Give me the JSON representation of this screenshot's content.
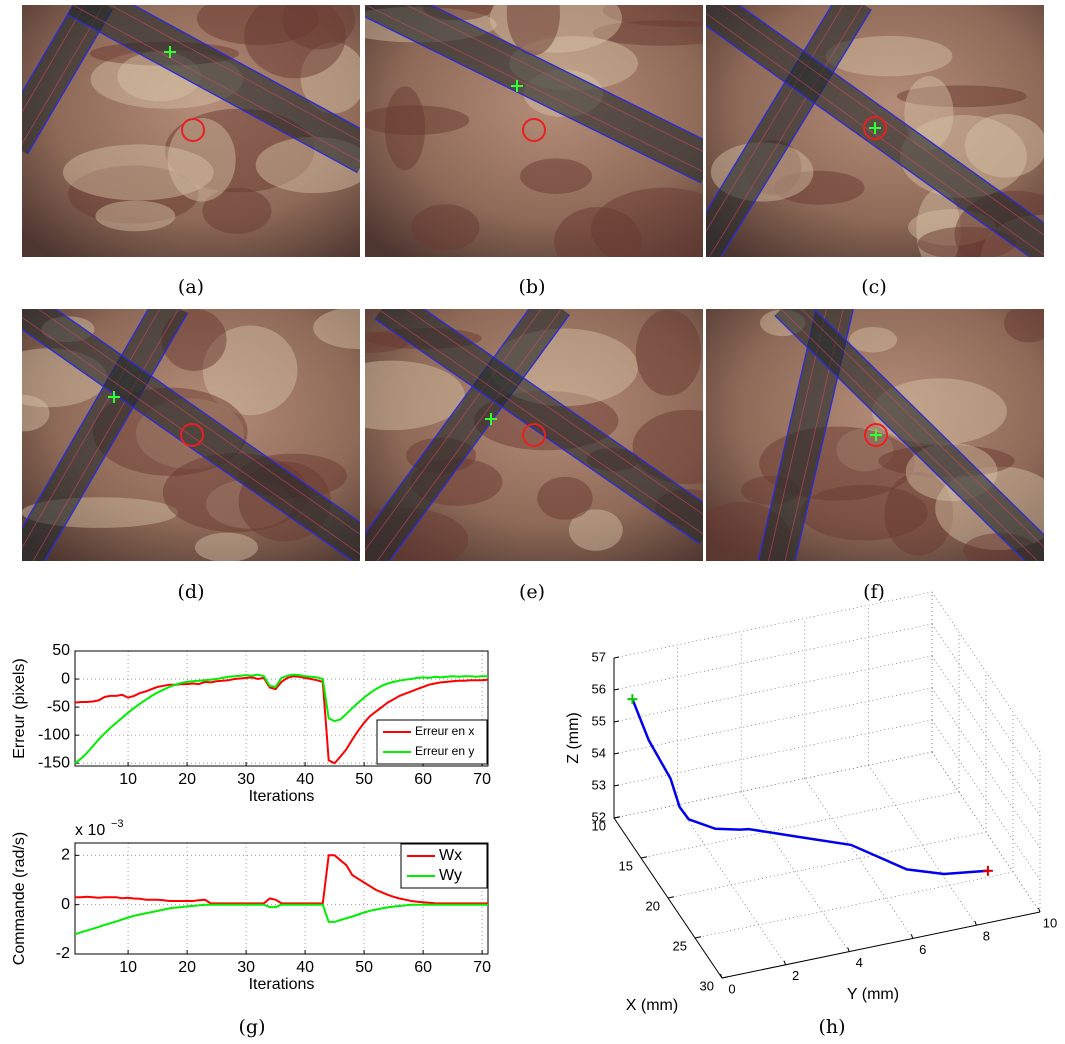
{
  "captions": [
    "(a)",
    "(b)",
    "(c)",
    "(d)",
    "(e)",
    "(f)",
    "(g)",
    "(h)"
  ],
  "chart_data": [
    {
      "type": "line",
      "ylabel": "Erreur (pixels)",
      "xlabel": "Iterations",
      "x": [
        1,
        2,
        3,
        4,
        5,
        6,
        7,
        8,
        9,
        10,
        11,
        12,
        13,
        14,
        15,
        16,
        17,
        18,
        19,
        20,
        21,
        22,
        23,
        24,
        25,
        26,
        27,
        28,
        29,
        30,
        31,
        32,
        33,
        34,
        35,
        36,
        37,
        38,
        39,
        40,
        41,
        42,
        43,
        44,
        45,
        46,
        47,
        48,
        49,
        50,
        51,
        52,
        53,
        54,
        55,
        56,
        57,
        58,
        59,
        60,
        61,
        62,
        63,
        64,
        65,
        66,
        67,
        68,
        69,
        70,
        71
      ],
      "xlim": [
        1,
        71
      ],
      "xticks": [
        10,
        20,
        30,
        40,
        50,
        60,
        70
      ],
      "ylim": [
        -155,
        50
      ],
      "yticks": [
        -150,
        -100,
        -50,
        0,
        50
      ],
      "grid": true,
      "legend": "lower right",
      "series": [
        {
          "name": "Erreur en x",
          "color": "#ff0000",
          "values": [
            -42,
            -41,
            -41,
            -40,
            -38,
            -32,
            -30,
            -30,
            -28,
            -33,
            -30,
            -25,
            -22,
            -18,
            -14,
            -12,
            -10,
            -10,
            -9,
            -9,
            -8,
            -9,
            -5,
            -6,
            -4,
            -3,
            -2,
            0,
            1,
            2,
            3,
            0,
            2,
            -15,
            -18,
            -5,
            2,
            5,
            4,
            2,
            0,
            -2,
            -5,
            -145,
            -150,
            -138,
            -125,
            -108,
            -92,
            -78,
            -66,
            -58,
            -50,
            -42,
            -36,
            -30,
            -26,
            -22,
            -18,
            -14,
            -10,
            -8,
            -6,
            -5,
            -4,
            -3,
            -3,
            -2,
            -2,
            -2,
            -1
          ]
        },
        {
          "name": "Erreur en y",
          "color": "#00ee00",
          "values": [
            -150,
            -142,
            -132,
            -120,
            -108,
            -97,
            -87,
            -78,
            -69,
            -60,
            -52,
            -44,
            -37,
            -30,
            -24,
            -19,
            -14,
            -10,
            -7,
            -5,
            -4,
            -3,
            -2,
            -1,
            0,
            2,
            4,
            5,
            6,
            7,
            6,
            8,
            5,
            -12,
            -14,
            2,
            6,
            8,
            7,
            5,
            4,
            3,
            0,
            -70,
            -75,
            -72,
            -62,
            -52,
            -42,
            -33,
            -25,
            -18,
            -12,
            -8,
            -5,
            -3,
            -1,
            0,
            2,
            3,
            2,
            4,
            3,
            4,
            5,
            4,
            5,
            5,
            4,
            5,
            5
          ]
        }
      ]
    },
    {
      "type": "line",
      "ylabel": "Commande (rad/s)",
      "xlabel": "Iterations",
      "multiplier": {
        "base": "x 10",
        "exponent": "−3"
      },
      "x": [
        1,
        2,
        3,
        4,
        5,
        6,
        7,
        8,
        9,
        10,
        11,
        12,
        13,
        14,
        15,
        16,
        17,
        18,
        19,
        20,
        21,
        22,
        23,
        24,
        25,
        26,
        27,
        28,
        29,
        30,
        31,
        32,
        33,
        34,
        35,
        36,
        37,
        38,
        39,
        40,
        41,
        42,
        43,
        44,
        45,
        46,
        47,
        48,
        49,
        50,
        51,
        52,
        53,
        54,
        55,
        56,
        57,
        58,
        59,
        60,
        61,
        62,
        63,
        64,
        65,
        66,
        67,
        68,
        69,
        70,
        71
      ],
      "xlim": [
        1,
        71
      ],
      "xticks": [
        10,
        20,
        30,
        40,
        50,
        60,
        70
      ],
      "ylim": [
        -2,
        2.5
      ],
      "yticks": [
        -2,
        0,
        2
      ],
      "grid": true,
      "legend": "upper right",
      "series": [
        {
          "name": "Wx",
          "color": "#ff0000",
          "values": [
            0.3,
            0.3,
            0.32,
            0.3,
            0.28,
            0.3,
            0.3,
            0.3,
            0.26,
            0.28,
            0.25,
            0.24,
            0.2,
            0.2,
            0.2,
            0.18,
            0.15,
            0.15,
            0.15,
            0.15,
            0.15,
            0.18,
            0.2,
            0.05,
            0.05,
            0.05,
            0.05,
            0.05,
            0.05,
            0.05,
            0.05,
            0.05,
            0.05,
            0.25,
            0.2,
            0.05,
            0.05,
            0.05,
            0.05,
            0.05,
            0.05,
            0.05,
            0.05,
            2,
            2,
            1.8,
            1.6,
            1.2,
            1.05,
            0.9,
            0.75,
            0.6,
            0.5,
            0.4,
            0.32,
            0.25,
            0.2,
            0.15,
            0.12,
            0.1,
            0.08,
            0.06,
            0.05,
            0.05,
            0.05,
            0.05,
            0.05,
            0.05,
            0.05,
            0.05,
            0.05
          ]
        },
        {
          "name": "Wy",
          "color": "#00ee00",
          "values": [
            -1.2,
            -1.12,
            -1.05,
            -0.98,
            -0.9,
            -0.82,
            -0.75,
            -0.68,
            -0.6,
            -0.52,
            -0.45,
            -0.4,
            -0.35,
            -0.3,
            -0.25,
            -0.2,
            -0.15,
            -0.12,
            -0.1,
            -0.07,
            -0.05,
            -0.03,
            0,
            0,
            0,
            0,
            0,
            0,
            0,
            0,
            0,
            0,
            0,
            -0.1,
            -0.1,
            0,
            0,
            0,
            0,
            0,
            0,
            0,
            0,
            -0.7,
            -0.7,
            -0.62,
            -0.55,
            -0.48,
            -0.4,
            -0.32,
            -0.25,
            -0.2,
            -0.15,
            -0.11,
            -0.08,
            -0.05,
            -0.03,
            0,
            0,
            0,
            0,
            0,
            0,
            0,
            0,
            0,
            0,
            0,
            0,
            0,
            0
          ]
        }
      ]
    },
    {
      "type": "line3d",
      "xlabel": "X (mm)",
      "ylabel": "Y (mm)",
      "zlabel": "Z (mm)",
      "xlim": [
        10,
        30
      ],
      "xticks": [
        10,
        15,
        20,
        25,
        30
      ],
      "ylim": [
        0,
        10
      ],
      "yticks": [
        0,
        2,
        4,
        6,
        8,
        10
      ],
      "zlim": [
        52,
        57
      ],
      "zticks": [
        52,
        53,
        54,
        55,
        56,
        57
      ],
      "grid": true,
      "start_color": "#00cc00",
      "end_color": "#dd0000",
      "series": [
        {
          "color": "#0000ee",
          "x": [
            13,
            13.5,
            14,
            14.5,
            15,
            17,
            18,
            18.5,
            20,
            21.5,
            23,
            24,
            24.3
          ],
          "y": [
            0.07,
            0.5,
            1.1,
            1.3,
            1.5,
            2,
            2.6,
            2.8,
            4,
            5.5,
            7,
            8,
            9.33
          ],
          "z": [
            56.45,
            55.2,
            54,
            53.2,
            52.9,
            53,
            53.1,
            53.2,
            53.1,
            52.9,
            52.2,
            52.1,
            52
          ]
        }
      ]
    }
  ]
}
